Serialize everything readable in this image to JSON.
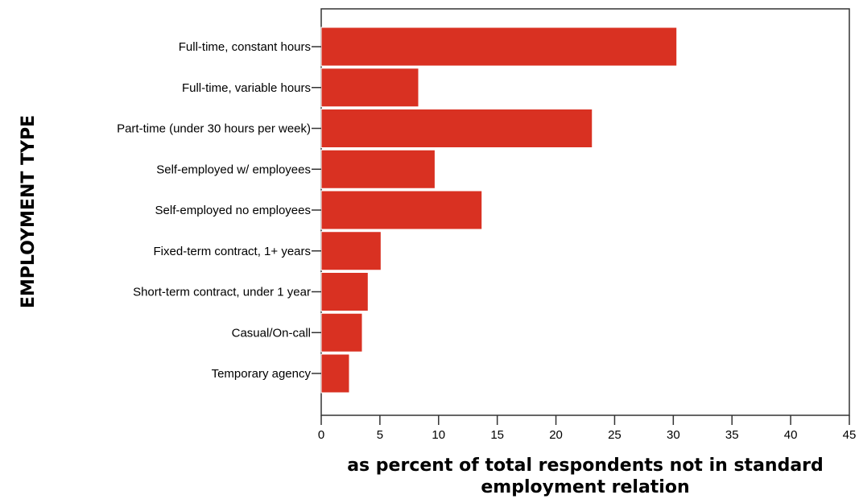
{
  "chart_data": {
    "type": "bar",
    "orientation": "horizontal",
    "categories": [
      "Full-time, constant hours",
      "Full-time, variable hours",
      "Part-time (under 30 hours per week)",
      "Self-employed w/ employees",
      "Self-employed no employees",
      "Fixed-term contract, 1+ years",
      "Short-term contract, under 1 year",
      "Casual/On-call",
      "Temporary agency"
    ],
    "values": [
      30.3,
      8.3,
      23.1,
      9.7,
      13.7,
      5.1,
      4.0,
      3.5,
      2.4
    ],
    "ylabel": "EMPLOYMENT TYPE",
    "xlabel_lines": [
      "as percent of total respondents not in standard",
      "employment relation"
    ],
    "xlim": [
      0,
      45
    ],
    "xticks": [
      0,
      5,
      10,
      15,
      20,
      25,
      30,
      35,
      40,
      45
    ],
    "grid": false,
    "bar_color": "#d93122",
    "bar_edge_color": "#ffffff"
  }
}
